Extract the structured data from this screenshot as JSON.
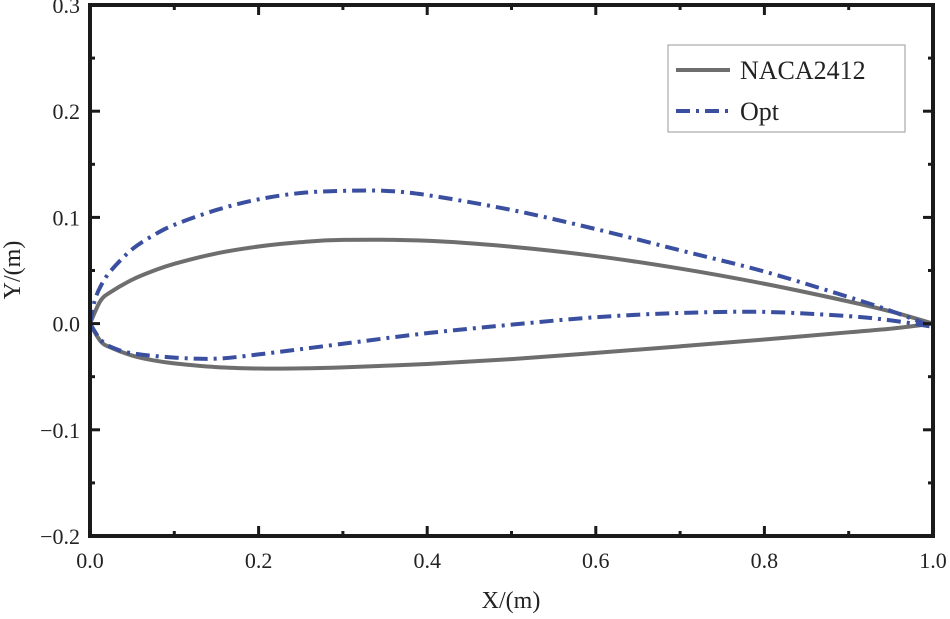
{
  "chart_data": {
    "type": "line",
    "title": "",
    "xlabel": "X/(m)",
    "ylabel": "Y/(m)",
    "xlim": [
      0.0,
      1.0
    ],
    "ylim": [
      -0.2,
      0.3
    ],
    "xticks": [
      "0.0",
      "0.2",
      "0.4",
      "0.6",
      "0.8",
      "1.0"
    ],
    "yticks": [
      "-0.2",
      "-0.1",
      "0.0",
      "0.1",
      "0.2",
      "0.3"
    ],
    "grid": false,
    "legend_position": "top-right",
    "series": [
      {
        "name": "NACA2412",
        "color": "#6e6e6e",
        "style": "solid",
        "upper": {
          "x": [
            0,
            0.0125,
            0.025,
            0.05,
            0.075,
            0.1,
            0.15,
            0.2,
            0.25,
            0.3,
            0.4,
            0.5,
            0.6,
            0.7,
            0.8,
            0.9,
            0.95,
            1.0
          ],
          "y": [
            0,
            0.0215,
            0.0299,
            0.0413,
            0.0496,
            0.0563,
            0.0661,
            0.0726,
            0.0767,
            0.0788,
            0.078,
            0.0724,
            0.0636,
            0.0518,
            0.0375,
            0.0208,
            0.0114,
            0.0
          ]
        },
        "lower": {
          "x": [
            0,
            0.0125,
            0.025,
            0.05,
            0.075,
            0.1,
            0.15,
            0.2,
            0.25,
            0.3,
            0.4,
            0.5,
            0.6,
            0.7,
            0.8,
            0.9,
            0.95,
            1.0
          ],
          "y": [
            0,
            -0.0165,
            -0.0227,
            -0.0301,
            -0.0346,
            -0.0375,
            -0.041,
            -0.0423,
            -0.0422,
            -0.0412,
            -0.038,
            -0.0334,
            -0.0276,
            -0.0214,
            -0.015,
            -0.0082,
            -0.0048,
            0.0
          ]
        }
      },
      {
        "name": "Opt",
        "color": "#3a4fa0",
        "style": "dash-dot",
        "upper": {
          "x": [
            0,
            0.005,
            0.0125,
            0.025,
            0.05,
            0.075,
            0.1,
            0.15,
            0.2,
            0.25,
            0.3,
            0.35,
            0.4,
            0.5,
            0.6,
            0.7,
            0.8,
            0.9,
            0.95,
            1.0
          ],
          "y": [
            0,
            0.02,
            0.035,
            0.05,
            0.07,
            0.083,
            0.093,
            0.107,
            0.117,
            0.123,
            0.125,
            0.125,
            0.121,
            0.107,
            0.089,
            0.069,
            0.049,
            0.025,
            0.012,
            -0.003
          ]
        },
        "lower": {
          "x": [
            0,
            0.0125,
            0.025,
            0.05,
            0.1,
            0.15,
            0.2,
            0.3,
            0.4,
            0.5,
            0.6,
            0.7,
            0.8,
            0.9,
            0.95,
            1.0
          ],
          "y": [
            0,
            -0.015,
            -0.022,
            -0.028,
            -0.032,
            -0.033,
            -0.029,
            -0.019,
            -0.009,
            -0.001,
            0.006,
            0.01,
            0.011,
            0.007,
            0.003,
            -0.003
          ]
        }
      }
    ]
  }
}
